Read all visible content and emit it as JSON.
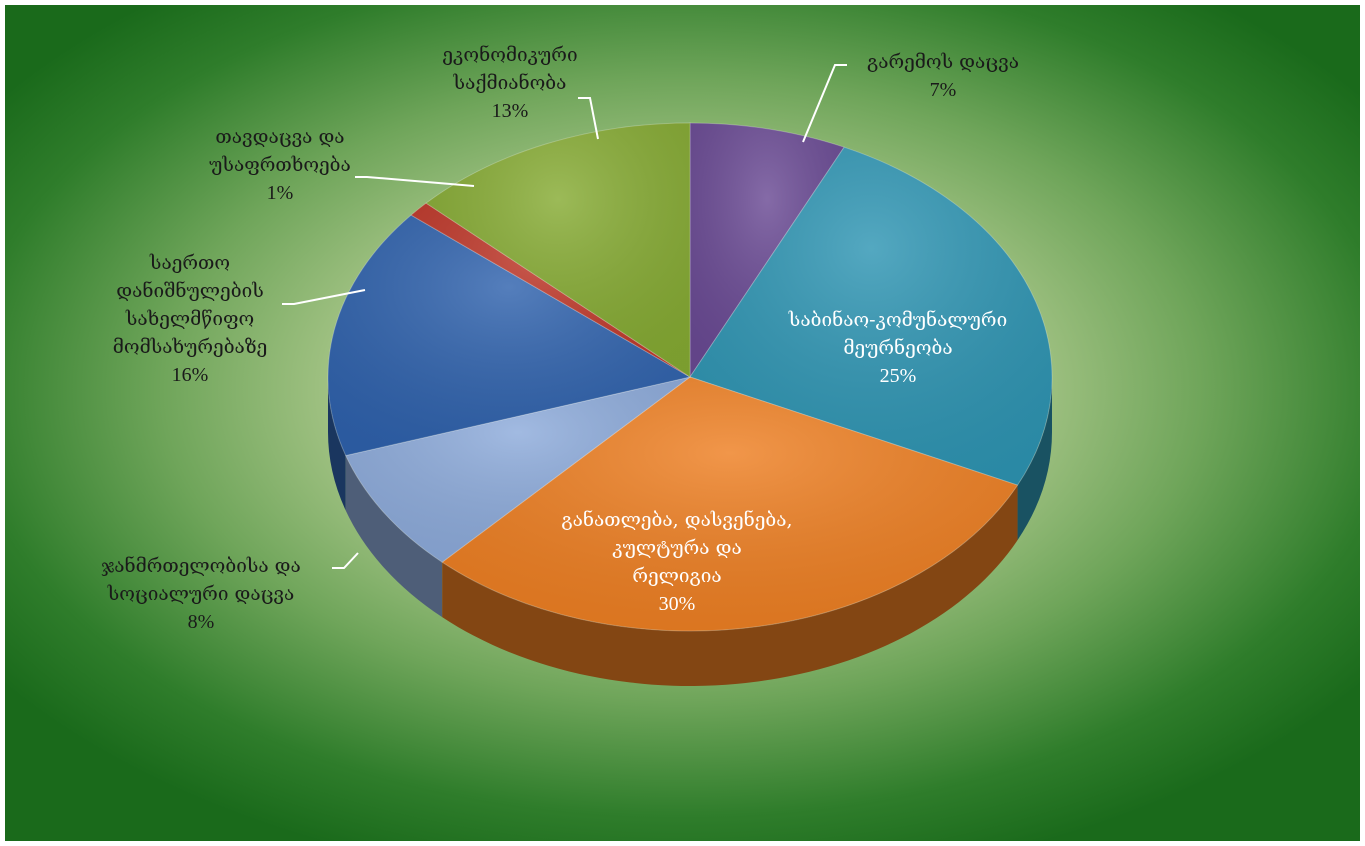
{
  "chart_data": {
    "type": "pie",
    "title": "",
    "slices": [
      {
        "lines": [
          "გარემოს დაცვა"
        ],
        "pct_label": "7%",
        "value": 7,
        "color": "#6a4a94"
      },
      {
        "lines": [
          "საბინაო-კომუნალური",
          "მეურნეობა"
        ],
        "pct_label": "25%",
        "value": 25,
        "color": "#2e95b3"
      },
      {
        "lines": [
          "განათლება, დასვენება,",
          "კულტურა და",
          "რელიგია"
        ],
        "pct_label": "30%",
        "value": 30,
        "color": "#ee7f22"
      },
      {
        "lines": [
          "ჯანმრთელობისა და",
          "სოციალური დაცვა"
        ],
        "pct_label": "8%",
        "value": 8,
        "color": "#8dabdb"
      },
      {
        "lines": [
          "საერთო",
          "დანიშნულების",
          "სახელმწიფო",
          "მომსახურებაზე"
        ],
        "pct_label": "16%",
        "value": 16,
        "color": "#2f62ad"
      },
      {
        "lines": [
          "თავდაცვა და",
          "უსაფრთხოება"
        ],
        "pct_label": "1%",
        "value": 1,
        "color": "#c0392b"
      },
      {
        "lines": [
          "ეკონომიკური",
          "საქმიანობა"
        ],
        "pct_label": "13%",
        "value": 13,
        "color": "#86ab33"
      }
    ]
  }
}
